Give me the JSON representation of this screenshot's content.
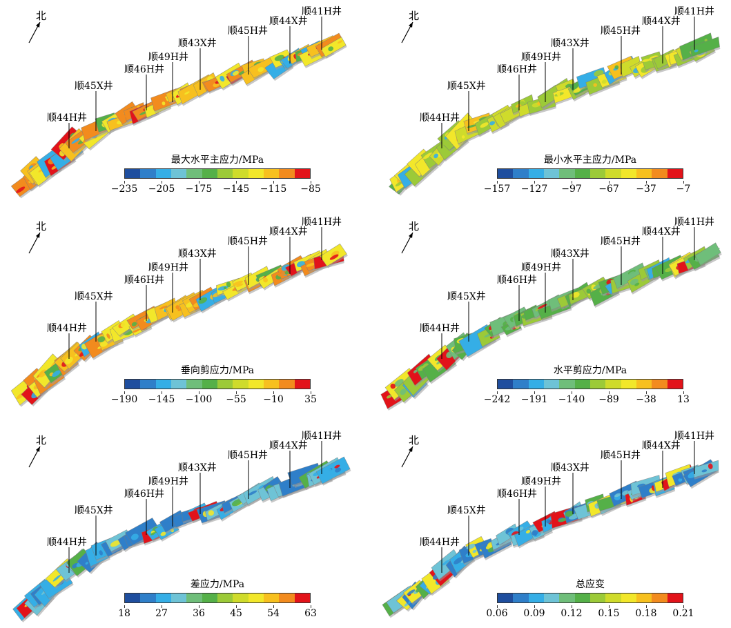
{
  "north_label": "北",
  "colormap": [
    "#1f4e9e",
    "#2f7fc9",
    "#35aee6",
    "#6ec3d6",
    "#6fbe7a",
    "#55b048",
    "#9cca38",
    "#cfdb2b",
    "#f2e72a",
    "#f7c01f",
    "#f28b1e",
    "#e2131a"
  ],
  "wells": {
    "s44h": "顺44H井",
    "s45x": "顺45X井",
    "s46h": "顺46H井",
    "s49h": "顺49H井",
    "s43x": "顺43X井",
    "s45h": "顺45H井",
    "s44x": "顺44X井",
    "s41h": "顺41H井"
  },
  "panels": [
    {
      "title": "最大水平主应力/MPa",
      "ticks": [
        "−235",
        "−205",
        "−175",
        "−145",
        "−115",
        "−85"
      ],
      "dominant_colors": [
        "#f28b1e",
        "#f7c01f",
        "#f2e72a"
      ],
      "accent_colors": [
        "#55b048",
        "#35aee6",
        "#e2131a"
      ]
    },
    {
      "title": "最小水平主应力/MPa",
      "ticks": [
        "−157",
        "−127",
        "−97",
        "−67",
        "−37",
        "−7"
      ],
      "dominant_colors": [
        "#cfdb2b",
        "#f2e72a",
        "#9cca38"
      ],
      "accent_colors": [
        "#55b048",
        "#35aee6",
        "#f7c01f"
      ]
    },
    {
      "title": "垂向剪应力/MPa",
      "ticks": [
        "−190",
        "−145",
        "−100",
        "−55",
        "−10",
        "35"
      ],
      "dominant_colors": [
        "#f28b1e",
        "#f7c01f",
        "#f2e72a"
      ],
      "accent_colors": [
        "#55b048",
        "#35aee6",
        "#e2131a"
      ]
    },
    {
      "title": "水平剪应力/MPa",
      "ticks": [
        "−242",
        "−191",
        "−140",
        "−89",
        "−38",
        "13"
      ],
      "dominant_colors": [
        "#55b048",
        "#6fbe7a",
        "#9cca38"
      ],
      "accent_colors": [
        "#35aee6",
        "#f2e72a",
        "#e2131a"
      ]
    },
    {
      "title": "差应力/MPa",
      "ticks": [
        "18",
        "27",
        "36",
        "45",
        "54",
        "63"
      ],
      "dominant_colors": [
        "#2f7fc9",
        "#35aee6",
        "#6ec3d6"
      ],
      "accent_colors": [
        "#55b048",
        "#f2e72a",
        "#e2131a"
      ]
    },
    {
      "title": "总应变",
      "ticks": [
        "0.06",
        "0.09",
        "0.12",
        "0.15",
        "0.18",
        "0.21"
      ],
      "dominant_colors": [
        "#35aee6",
        "#6ec3d6",
        "#2f7fc9"
      ],
      "accent_colors": [
        "#55b048",
        "#f2e72a",
        "#e2131a"
      ]
    }
  ]
}
